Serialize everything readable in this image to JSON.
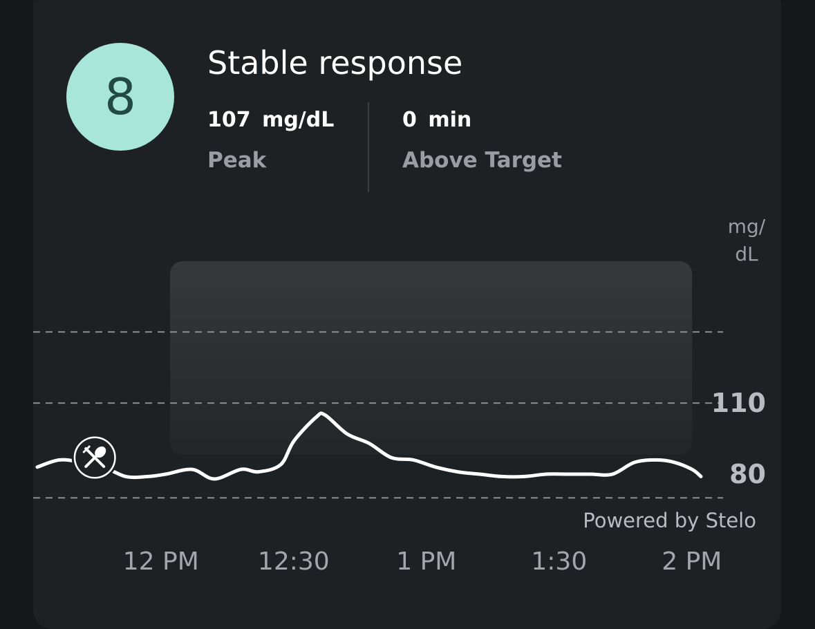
{
  "score": {
    "value": "8"
  },
  "title": "Stable response",
  "metrics": [
    {
      "value": "107  mg/dL",
      "label": "Peak"
    },
    {
      "value": "0  min",
      "label": "Above Target"
    }
  ],
  "unit": {
    "line1": "mg/",
    "line2": "dL"
  },
  "powered_by": "Powered by Stelo",
  "meal_marker": {
    "icon": "fork-spoon-icon",
    "time_min": 13
  },
  "colors": {
    "score_circle": "#a7e6d8",
    "line": "#ffffff",
    "background": "#1e2124"
  },
  "chart_data": {
    "type": "line",
    "x_unit": "minutes after 11:30 AM",
    "xlim": [
      0,
      150
    ],
    "x_ticks": [
      {
        "value": 27,
        "label": "12 PM"
      },
      {
        "value": 57,
        "label": "12:30"
      },
      {
        "value": 87,
        "label": "1 PM"
      },
      {
        "value": 117,
        "label": "1:30"
      },
      {
        "value": 147,
        "label": "2 PM"
      }
    ],
    "y_ticks": [
      {
        "value": 110,
        "label": "110"
      },
      {
        "value": 80,
        "label": "80"
      }
    ],
    "y_gridlines": [
      140,
      110,
      70
    ],
    "ylabel": "mg/dL",
    "highlight_window": [
      30,
      148
    ],
    "series": [
      {
        "x": [
          0,
          5,
          10,
          15,
          20,
          25,
          29,
          35,
          40,
          46,
          50,
          55,
          58,
          63,
          65,
          70,
          75,
          80,
          85,
          90,
          95,
          100,
          105,
          110,
          115,
          120,
          125,
          130,
          135,
          140,
          144,
          148,
          150
        ],
        "y": [
          83,
          86,
          85,
          83,
          79,
          79,
          80,
          82,
          78,
          82,
          81,
          84,
          94,
          104,
          105,
          97,
          93,
          87,
          86,
          83,
          81,
          80,
          79,
          79,
          80,
          80,
          80,
          80,
          85,
          86,
          85,
          82,
          79
        ]
      }
    ]
  }
}
